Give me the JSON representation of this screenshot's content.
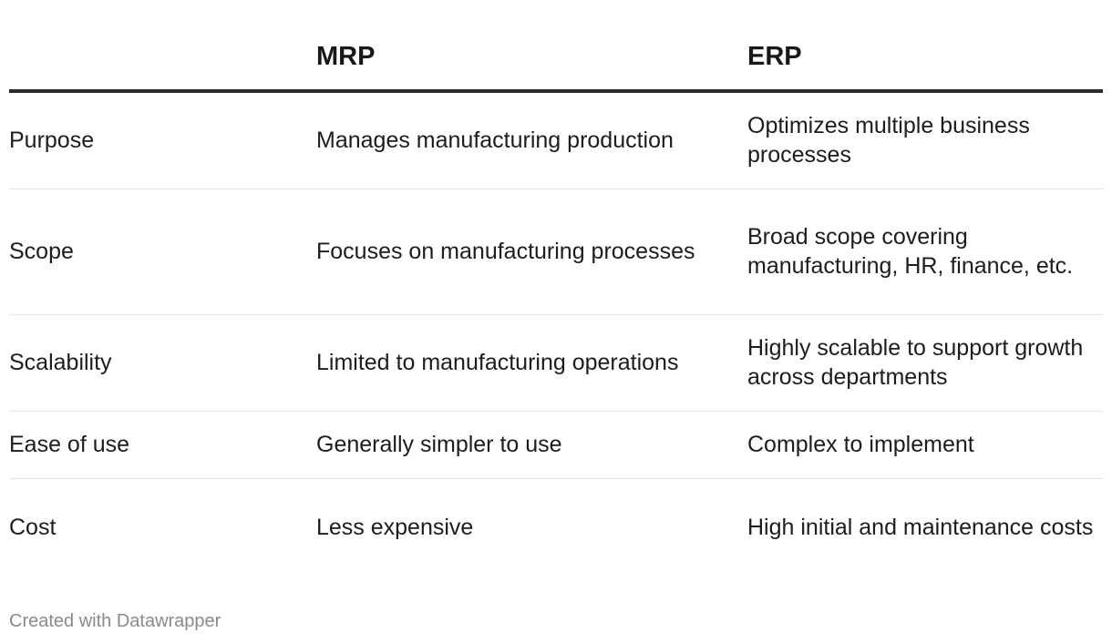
{
  "chart_data": {
    "type": "table",
    "columns": [
      "",
      "MRP",
      "ERP"
    ],
    "rows": [
      {
        "label": "Purpose",
        "mrp": "Manages manufacturing production",
        "erp": "Optimizes multiple business processes"
      },
      {
        "label": "Scope",
        "mrp": "Focuses on manufacturing processes",
        "erp": "Broad scope covering manufacturing, HR, finance, etc."
      },
      {
        "label": "Scalability",
        "mrp": "Limited to manufacturing operations",
        "erp": "Highly scalable to support growth across departments"
      },
      {
        "label": "Ease of use",
        "mrp": "Generally simpler to use",
        "erp": "Complex to implement"
      },
      {
        "label": "Cost",
        "mrp": "Less expensive",
        "erp": "High initial and maintenance costs"
      }
    ],
    "footer": "Created with Datawrapper"
  }
}
